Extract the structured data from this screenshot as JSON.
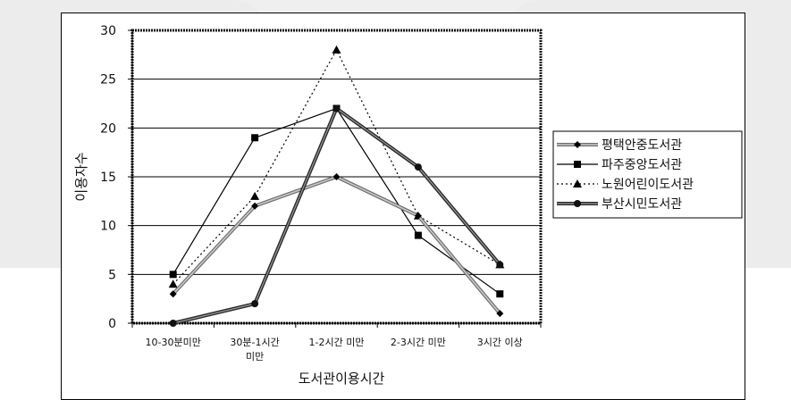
{
  "chart_data": {
    "type": "line",
    "title": "",
    "xlabel": "도서관이용시간",
    "ylabel": "이용자수",
    "ylim": [
      0,
      30
    ],
    "yticks": [
      0,
      5,
      10,
      15,
      20,
      25,
      30
    ],
    "grid": true,
    "legend_position": "right",
    "categories": [
      [
        "10-30분미만"
      ],
      [
        "30분-1시간",
        "미만"
      ],
      [
        "1-2시간 미만"
      ],
      [
        "2-3시간 미만"
      ],
      [
        "3시간 이상"
      ]
    ],
    "series": [
      {
        "name": "평택안중도서관",
        "values": [
          3,
          12,
          15,
          11,
          1
        ],
        "color": "#888888",
        "marker": "diamond",
        "style": "thick-gray"
      },
      {
        "name": "파주중앙도서관",
        "values": [
          5,
          19,
          22,
          9,
          3
        ],
        "color": "#000000",
        "marker": "square",
        "style": "solid"
      },
      {
        "name": "노원어린이도서관",
        "values": [
          4,
          13,
          28,
          11,
          6
        ],
        "color": "#000000",
        "marker": "triangle",
        "style": "dotted"
      },
      {
        "name": "부산시민도서관",
        "values": [
          0,
          2,
          22,
          16,
          6
        ],
        "color": "#555555",
        "marker": "circle",
        "style": "thick-dark"
      }
    ]
  }
}
